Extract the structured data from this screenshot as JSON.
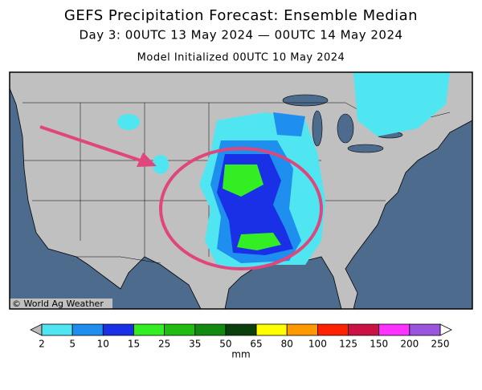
{
  "header": {
    "title": "GEFS Precipitation Forecast: Ensemble Median",
    "subtitle": "Day 3: 00UTC 13 May 2024 — 00UTC 14 May 2024",
    "initialized": "Model Initialized 00UTC 10 May 2024"
  },
  "map": {
    "credit": "© World Ag Weather"
  },
  "legend": {
    "ticks": [
      2,
      5,
      10,
      15,
      25,
      35,
      50,
      65,
      80,
      100,
      125,
      150,
      200,
      250
    ],
    "colors": [
      "#4fe6f2",
      "#1e8fef",
      "#1a30e6",
      "#33ee22",
      "#22bb11",
      "#128a12",
      "#0b3f0b",
      "#ffff00",
      "#ff9900",
      "#ff2200",
      "#cc1144",
      "#ff33ff",
      "#9955dd"
    ],
    "unit": "mm"
  }
}
